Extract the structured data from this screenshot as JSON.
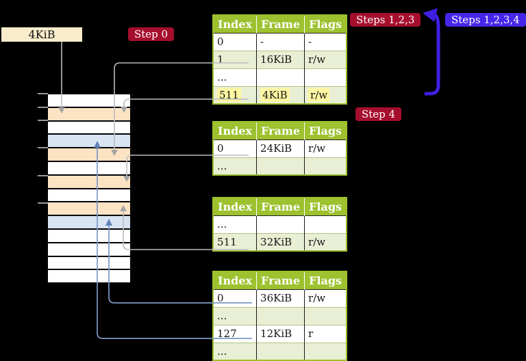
{
  "colors": {
    "header-green": "#9dc12f",
    "row-green": "#e9efd4",
    "highlight-yellow": "#fdf6a2",
    "badge-red": "#a60e2e",
    "badge-blue": "#4527ea",
    "arrow-blue": "#3f1fe3",
    "frame-orange": "#fbe3c4",
    "frame-blue": "#d8e4f2",
    "frame-white": "#ffffff",
    "label-cream": "#f9ecca",
    "line-gray": "#bcbcbc",
    "line-steel": "#7d98c8"
  },
  "labels": {
    "page_size": "4KiB",
    "step0": "Step 0",
    "steps123": "Steps 1,2,3",
    "steps1234": "Steps 1,2,3,4",
    "step4": "Step 4"
  },
  "tables": [
    {
      "name": "page-table-level4",
      "headers": [
        "Index",
        "Frame",
        "Flags"
      ],
      "rows": [
        {
          "cells": [
            "0",
            "-",
            "-"
          ],
          "highlight": false
        },
        {
          "cells": [
            "1",
            "16KiB",
            "r/w"
          ],
          "highlight": false
        },
        {
          "cells": [
            "...",
            "",
            ""
          ],
          "highlight": false
        },
        {
          "cells": [
            "511",
            "4KiB",
            "r/w"
          ],
          "highlight": true
        }
      ]
    },
    {
      "name": "page-table-level3",
      "headers": [
        "Index",
        "Frame",
        "Flags"
      ],
      "rows": [
        {
          "cells": [
            "0",
            "24KiB",
            "r/w"
          ],
          "highlight": false
        },
        {
          "cells": [
            "...",
            "",
            ""
          ],
          "highlight": false
        }
      ]
    },
    {
      "name": "page-table-level2",
      "headers": [
        "Index",
        "Frame",
        "Flags"
      ],
      "rows": [
        {
          "cells": [
            "...",
            "",
            ""
          ],
          "highlight": false
        },
        {
          "cells": [
            "511",
            "32KiB",
            "r/w"
          ],
          "highlight": false
        }
      ]
    },
    {
      "name": "page-table-level1",
      "headers": [
        "Index",
        "Frame",
        "Flags"
      ],
      "rows": [
        {
          "cells": [
            "0",
            "36KiB",
            "r/w"
          ],
          "highlight": false
        },
        {
          "cells": [
            "...",
            "",
            ""
          ],
          "highlight": false
        },
        {
          "cells": [
            "127",
            "12KiB",
            "r"
          ],
          "highlight": false
        },
        {
          "cells": [
            "...",
            "",
            ""
          ],
          "highlight": false
        }
      ]
    }
  ],
  "memory": {
    "rows": [
      "white",
      "orange",
      "white",
      "blue",
      "orange",
      "white",
      "orange",
      "white",
      "orange",
      "blue",
      "white",
      "white",
      "white",
      "white"
    ]
  }
}
